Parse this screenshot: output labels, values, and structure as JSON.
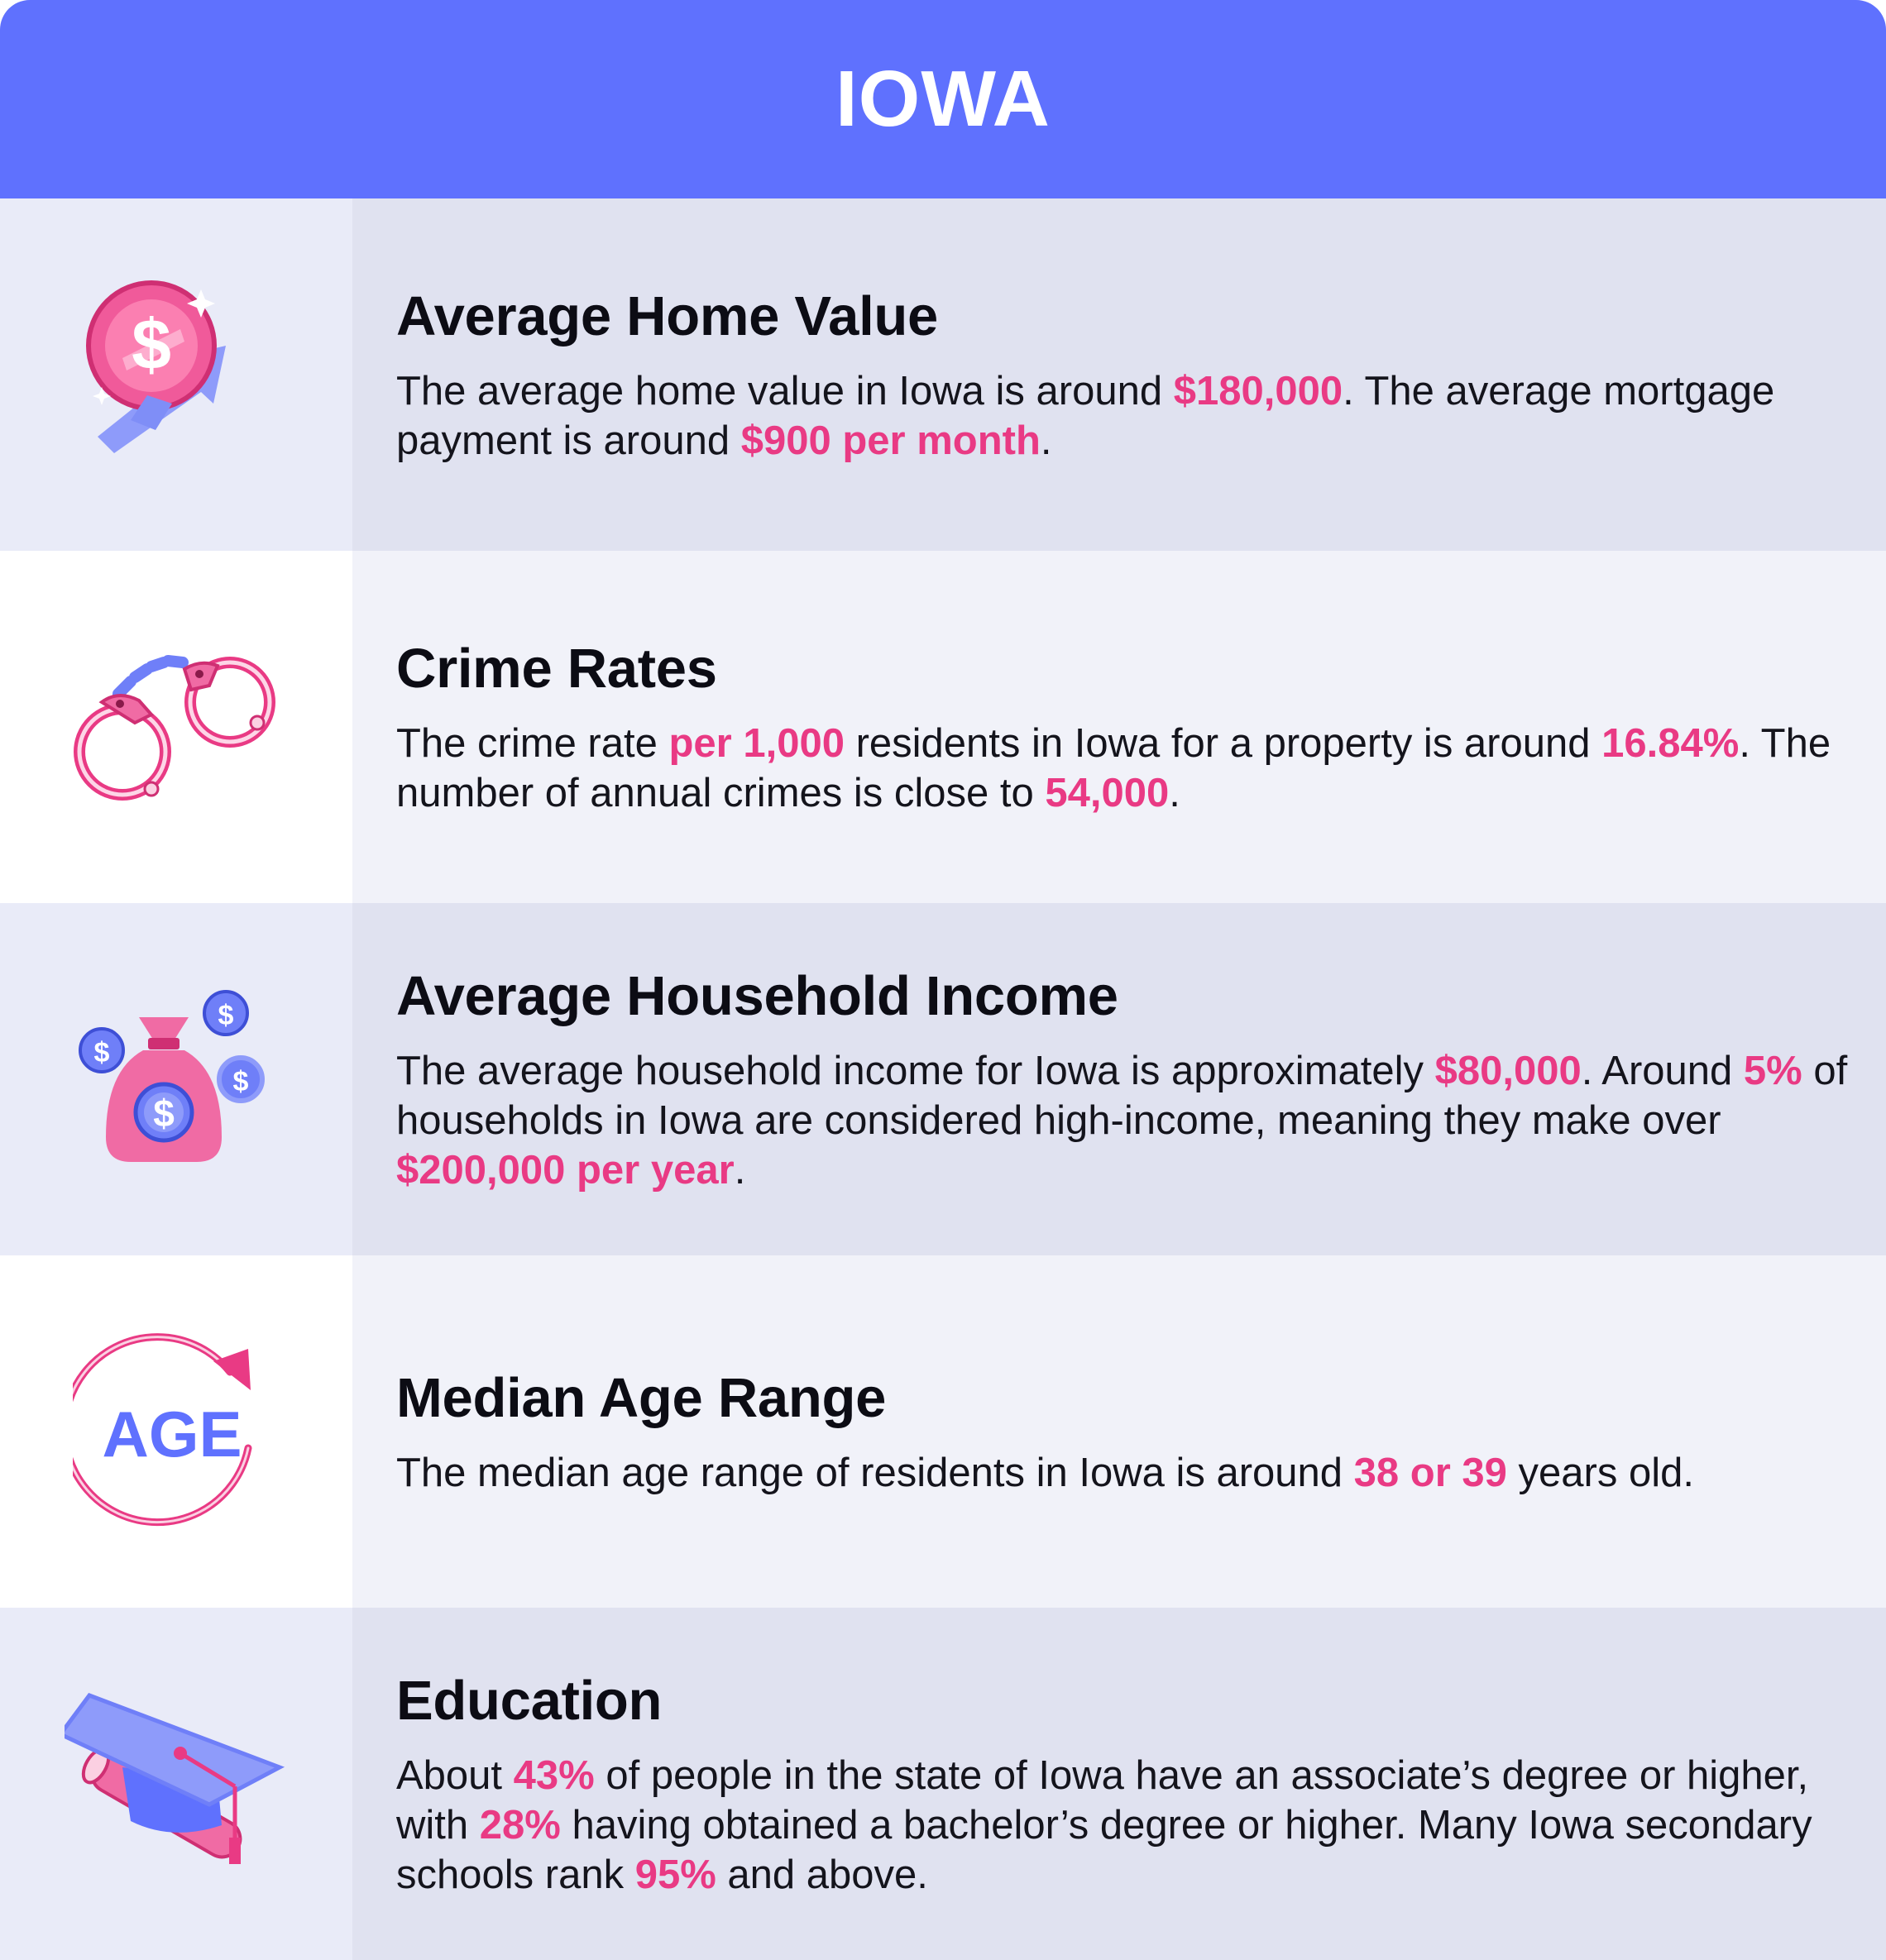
{
  "header": {
    "title": "IOWA"
  },
  "colors": {
    "header_bg": "#5f71fe",
    "highlight": "#e93a84",
    "accent_blue": "#6f7ff8"
  },
  "sections": [
    {
      "icon": "dollar-coin-growth-icon",
      "title": "Average Home Value",
      "parts": [
        "The average home value in Iowa is around ",
        "$180,000",
        ". The average mortgage payment is around ",
        "$900 per month",
        "."
      ]
    },
    {
      "icon": "handcuffs-icon",
      "title": "Crime Rates",
      "parts": [
        "The crime rate ",
        "per 1,000",
        " residents in Iowa for a property is around ",
        "16.84%",
        ". The number of annual crimes is close to ",
        "54,000",
        "."
      ]
    },
    {
      "icon": "money-bag-icon",
      "title": "Average Household Income",
      "parts": [
        "The average household income for Iowa is approximately ",
        "$80,000",
        ". Around ",
        "5%",
        " of households in Iowa are considered high-income, meaning they make over ",
        "$200,000 per year",
        "."
      ]
    },
    {
      "icon": "age-cycle-icon",
      "icon_text": "AGE",
      "title": "Median Age Range",
      "parts": [
        "The median age range of residents in Iowa is around ",
        "38 or 39",
        " years old."
      ]
    },
    {
      "icon": "graduation-cap-diploma-icon",
      "title": "Education",
      "parts": [
        "About ",
        "43%",
        " of people in the state of Iowa have an associate’s degree or higher, with ",
        "28%",
        " having obtained a bachelor’s degree or higher. Many Iowa secondary schools rank ",
        "95%",
        " and above."
      ]
    }
  ]
}
